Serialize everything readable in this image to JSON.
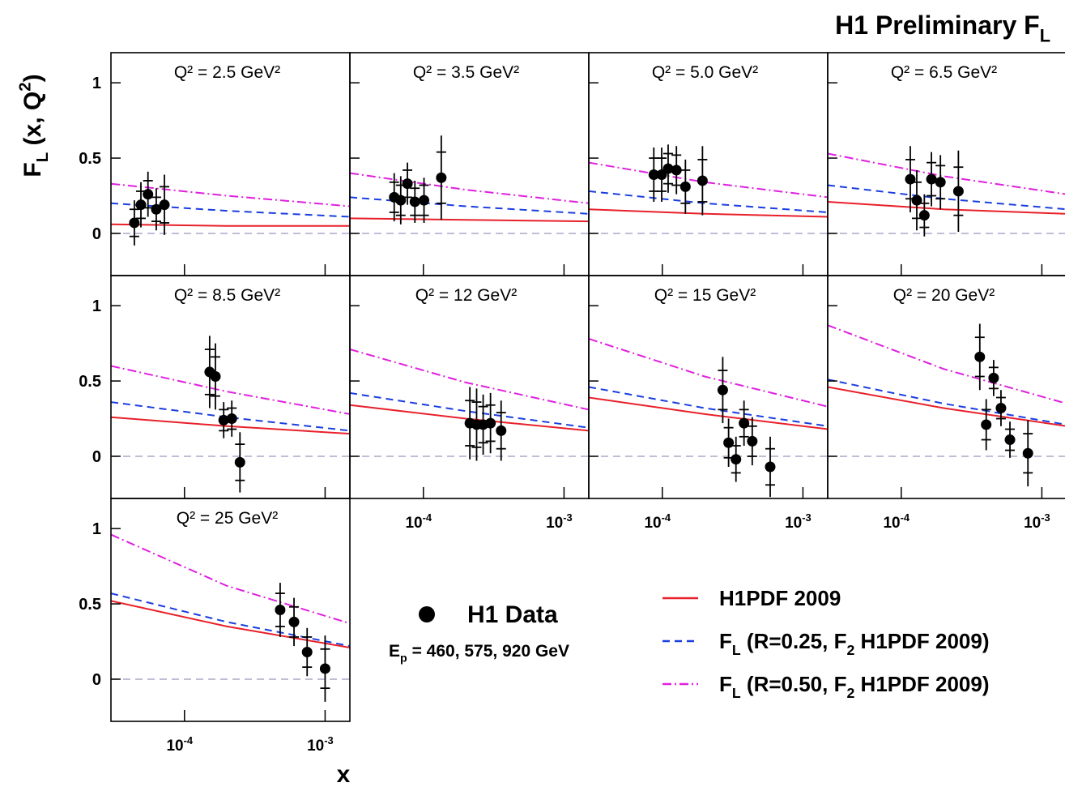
{
  "chart_data": {
    "type": "errorbar-panels",
    "title": [
      "H1 Preliminary F",
      "L"
    ],
    "y_label": [
      "F",
      "L",
      " (x, Q",
      "2",
      ")"
    ],
    "x_label": "x",
    "log_x": true,
    "xlim": [
      3e-05,
      0.0015
    ],
    "ylim": [
      -0.28,
      1.2
    ],
    "xticks": [
      {
        "value": 0.0001,
        "label": [
          "10",
          "-4"
        ]
      },
      {
        "value": 0.001,
        "label": [
          "10",
          "-3"
        ]
      }
    ],
    "yticks": [
      0,
      0.5,
      1
    ],
    "curve_x": [
      3e-05,
      0.0002,
      0.0015
    ],
    "data_label": "H1 Data",
    "data_color": "#000000",
    "beam_label": [
      "E",
      "p",
      " = 460, 575, 920 GeV"
    ],
    "series": [
      {
        "name": [
          "H1PDF 2009"
        ],
        "color": "#e8202a",
        "dash": "solid"
      },
      {
        "name": [
          "F",
          "L",
          " (R=0.25, F",
          "2",
          " H1PDF 2009)"
        ],
        "color": "#1a3ee0",
        "dash": "dashed"
      },
      {
        "name": [
          "F",
          "L",
          " (R=0.50, F",
          "2",
          " H1PDF 2009)"
        ],
        "color": "#e020e0",
        "dash": "dashdot"
      }
    ],
    "panels": [
      {
        "label": "Q² = 2.5 GeV²",
        "x": [
          4.4e-05,
          4.9e-05,
          5.5e-05,
          6.3e-05,
          7.2e-05
        ],
        "values": [
          0.07,
          0.19,
          0.26,
          0.16,
          0.19
        ],
        "errors": [
          0.15,
          0.15,
          0.15,
          0.14,
          0.2
        ],
        "stat_errors": [
          0.09,
          0.09,
          0.09,
          0.08,
          0.12
        ],
        "curves": [
          [
            0.06,
            0.05,
            0.05
          ],
          [
            0.2,
            0.15,
            0.11
          ],
          [
            0.33,
            0.25,
            0.18
          ]
        ]
      },
      {
        "label": "Q² = 3.5 GeV²",
        "x": [
          6.2e-05,
          6.9e-05,
          7.7e-05,
          8.7e-05,
          0.000101,
          0.000134
        ],
        "values": [
          0.24,
          0.22,
          0.33,
          0.21,
          0.22,
          0.37
        ],
        "errors": [
          0.16,
          0.16,
          0.14,
          0.14,
          0.15,
          0.28
        ],
        "stat_errors": [
          0.1,
          0.1,
          0.09,
          0.09,
          0.1,
          0.17
        ],
        "curves": [
          [
            0.1,
            0.09,
            0.08
          ],
          [
            0.24,
            0.18,
            0.13
          ],
          [
            0.4,
            0.29,
            0.2
          ]
        ]
      },
      {
        "label": "Q² = 5.0 GeV²",
        "x": [
          8.7e-05,
          9.9e-05,
          0.00011,
          0.000126,
          0.000146,
          0.000193
        ],
        "values": [
          0.39,
          0.39,
          0.43,
          0.42,
          0.31,
          0.35
        ],
        "errors": [
          0.18,
          0.18,
          0.16,
          0.16,
          0.18,
          0.23
        ],
        "stat_errors": [
          0.11,
          0.11,
          0.1,
          0.1,
          0.11,
          0.14
        ],
        "curves": [
          [
            0.16,
            0.13,
            0.11
          ],
          [
            0.28,
            0.2,
            0.14
          ],
          [
            0.47,
            0.34,
            0.24
          ]
        ]
      },
      {
        "label": "Q² = 6.5 GeV²",
        "x": [
          0.000116,
          0.000129,
          0.000146,
          0.000164,
          0.00019,
          0.000255
        ],
        "values": [
          0.36,
          0.22,
          0.12,
          0.36,
          0.34,
          0.28
        ],
        "errors": [
          0.22,
          0.2,
          0.14,
          0.18,
          0.18,
          0.27
        ],
        "stat_errors": [
          0.13,
          0.12,
          0.08,
          0.11,
          0.11,
          0.16
        ],
        "curves": [
          [
            0.21,
            0.16,
            0.13
          ],
          [
            0.32,
            0.23,
            0.16
          ],
          [
            0.53,
            0.38,
            0.26
          ]
        ]
      },
      {
        "label": "Q² = 8.5 GeV²",
        "x": [
          0.000151,
          0.000166,
          0.00019,
          0.000217,
          0.000248
        ],
        "values": [
          0.56,
          0.53,
          0.24,
          0.25,
          -0.04
        ],
        "errors": [
          0.24,
          0.22,
          0.12,
          0.12,
          0.2
        ],
        "stat_errors": [
          0.15,
          0.13,
          0.07,
          0.07,
          0.12
        ],
        "curves": [
          [
            0.26,
            0.2,
            0.15
          ],
          [
            0.36,
            0.26,
            0.17
          ],
          [
            0.6,
            0.43,
            0.28
          ]
        ]
      },
      {
        "label": "Q² = 12 GeV²",
        "x": [
          0.000214,
          0.000239,
          0.000266,
          0.0003,
          0.000357
        ],
        "values": [
          0.22,
          0.21,
          0.21,
          0.22,
          0.17
        ],
        "errors": [
          0.24,
          0.24,
          0.2,
          0.2,
          0.2
        ],
        "stat_errors": [
          0.15,
          0.15,
          0.12,
          0.12,
          0.12
        ],
        "curves": [
          [
            0.34,
            0.25,
            0.17
          ],
          [
            0.42,
            0.3,
            0.19
          ],
          [
            0.71,
            0.49,
            0.31
          ]
        ]
      },
      {
        "label": "Q² = 15 GeV²",
        "x": [
          0.000269,
          0.000296,
          0.000334,
          0.000381,
          0.000436,
          0.000585
        ],
        "values": [
          0.44,
          0.09,
          -0.02,
          0.22,
          0.1,
          -0.07
        ],
        "errors": [
          0.22,
          0.16,
          0.15,
          0.15,
          0.16,
          0.2
        ],
        "stat_errors": [
          0.13,
          0.1,
          0.09,
          0.09,
          0.1,
          0.12
        ],
        "curves": [
          [
            0.39,
            0.28,
            0.18
          ],
          [
            0.46,
            0.32,
            0.2
          ],
          [
            0.78,
            0.53,
            0.33
          ]
        ]
      },
      {
        "label": "Q² = 20 GeV²",
        "x": [
          0.000362,
          0.000402,
          0.000454,
          0.000512,
          0.000593,
          0.000796
        ],
        "values": [
          0.66,
          0.21,
          0.52,
          0.32,
          0.11,
          0.02
        ],
        "errors": [
          0.22,
          0.17,
          0.12,
          0.12,
          0.12,
          0.22
        ],
        "stat_errors": [
          0.13,
          0.1,
          0.07,
          0.07,
          0.07,
          0.13
        ],
        "curves": [
          [
            0.46,
            0.32,
            0.2
          ],
          [
            0.51,
            0.35,
            0.21
          ],
          [
            0.87,
            0.58,
            0.35
          ]
        ]
      },
      {
        "label": "Q² = 25 GeV²",
        "x": [
          0.000479,
          0.000601,
          0.000745,
          0.001
        ],
        "values": [
          0.46,
          0.38,
          0.18,
          0.07
        ],
        "errors": [
          0.18,
          0.16,
          0.16,
          0.22
        ],
        "stat_errors": [
          0.11,
          0.1,
          0.1,
          0.13
        ],
        "curves": [
          [
            0.52,
            0.35,
            0.21
          ],
          [
            0.57,
            0.38,
            0.22
          ],
          [
            0.96,
            0.62,
            0.37
          ]
        ]
      }
    ]
  }
}
